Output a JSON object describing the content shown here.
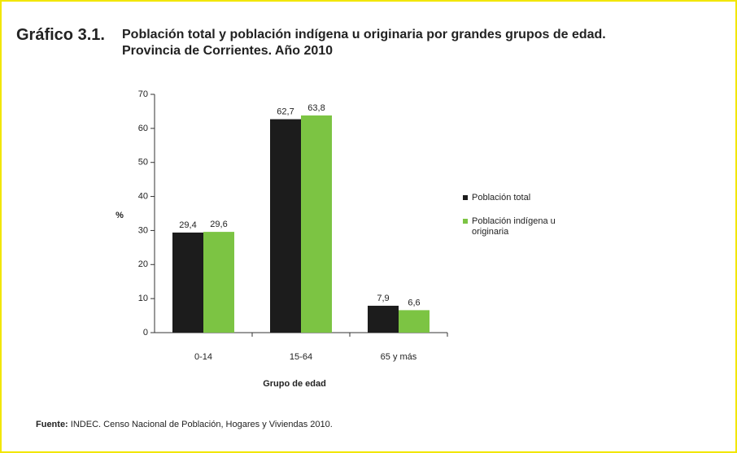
{
  "chart_data": {
    "type": "bar",
    "figure_label": "Gráfico 3.1.",
    "title": "Población total y población indígena u originaria por grandes grupos de edad.",
    "subtitle": "Provincia de Corrientes. Año 2010",
    "x_label": "Grupo de edad",
    "y_label": "%",
    "categories": [
      "0-14",
      "15-64",
      "65 y más"
    ],
    "series": [
      {
        "name": "Población total",
        "color": "#1c1c1c",
        "values": [
          29.4,
          62.7,
          7.9
        ],
        "value_labels": [
          "29,4",
          "62,7",
          "7,9"
        ]
      },
      {
        "name": "Población indígena u originaria",
        "color": "#7cc443",
        "values": [
          29.6,
          63.8,
          6.6
        ],
        "value_labels": [
          "29,6",
          "63,8",
          "6,6"
        ]
      }
    ],
    "ylim": [
      0,
      70
    ],
    "yticks": [
      0,
      10,
      20,
      30,
      40,
      50,
      60,
      70
    ],
    "grid": false,
    "legend": "right",
    "source_label": "Fuente:",
    "source": "INDEC. Censo Nacional de Población, Hogares y Viviendas 2010."
  }
}
